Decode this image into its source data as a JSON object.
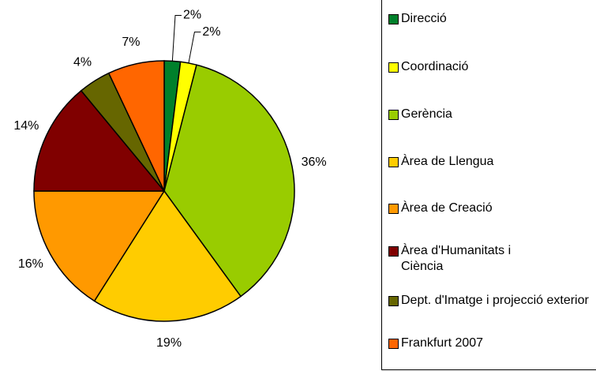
{
  "chart_data": {
    "type": "pie",
    "categories": [
      "Direcció",
      "Coordinació",
      "Gerència",
      "Àrea de Llengua",
      "Àrea de Creació",
      "Àrea d'Humanitats i Ciència",
      "Dept. d'Imatge i projecció exterior",
      "Frankfurt 2007"
    ],
    "values": [
      2,
      2,
      36,
      19,
      16,
      14,
      4,
      7
    ],
    "value_labels": [
      "2%",
      "2%",
      "36%",
      "19%",
      "16%",
      "14%",
      "4%",
      "7%"
    ],
    "colors": [
      "#00802b",
      "#ffff00",
      "#99cc00",
      "#ffcc00",
      "#ff9900",
      "#800000",
      "#666600",
      "#ff6600"
    ],
    "legend": "right"
  }
}
